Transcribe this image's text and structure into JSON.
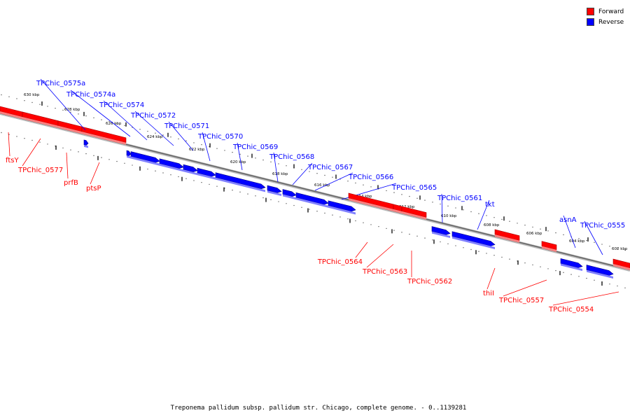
{
  "colors": {
    "forward": "#ff0000",
    "reverse": "#0000ff",
    "backbone": "#888888"
  },
  "legend": {
    "forward_label": "Forward",
    "reverse_label": "Reverse"
  },
  "caption": "Treponema pallidum subsp. pallidum str. Chicago, complete genome. - 0..1139281",
  "ticks": [
    "630 kbp",
    "628 kbp",
    "626 kbp",
    "624 kbp",
    "622 kbp",
    "620 kbp",
    "618 kbp",
    "616 kbp",
    "614 kbp",
    "612 kbp",
    "610 kbp",
    "608 kbp",
    "606 kbp",
    "604 kbp",
    "602 kbp"
  ],
  "genes": [
    {
      "label": "ftsY",
      "strand": "forward"
    },
    {
      "label": "TPChic_0577",
      "strand": "forward"
    },
    {
      "label": "prfB",
      "strand": "forward"
    },
    {
      "label": "ptsP",
      "strand": "forward"
    },
    {
      "label": "TPChic_0575a",
      "strand": "reverse"
    },
    {
      "label": "TPChic_0574a",
      "strand": "reverse"
    },
    {
      "label": "TPChic_0574",
      "strand": "reverse"
    },
    {
      "label": "TPChic_0572",
      "strand": "reverse"
    },
    {
      "label": "TPChic_0571",
      "strand": "reverse"
    },
    {
      "label": "TPChic_0570",
      "strand": "reverse"
    },
    {
      "label": "TPChic_0569",
      "strand": "reverse"
    },
    {
      "label": "TPChic_0568",
      "strand": "reverse"
    },
    {
      "label": "TPChic_0567",
      "strand": "reverse"
    },
    {
      "label": "TPChic_0566",
      "strand": "reverse"
    },
    {
      "label": "TPChic_0565",
      "strand": "reverse"
    },
    {
      "label": "TPChic_0564",
      "strand": "forward"
    },
    {
      "label": "TPChic_0563",
      "strand": "forward"
    },
    {
      "label": "TPChic_0562",
      "strand": "forward"
    },
    {
      "label": "TPChic_0561",
      "strand": "reverse"
    },
    {
      "label": "tkt",
      "strand": "reverse"
    },
    {
      "label": "thiI",
      "strand": "forward"
    },
    {
      "label": "TPChic_0557",
      "strand": "forward"
    },
    {
      "label": "asnA",
      "strand": "reverse"
    },
    {
      "label": "TPChic_0555",
      "strand": "reverse"
    },
    {
      "label": "TPChic_0554",
      "strand": "forward"
    }
  ]
}
